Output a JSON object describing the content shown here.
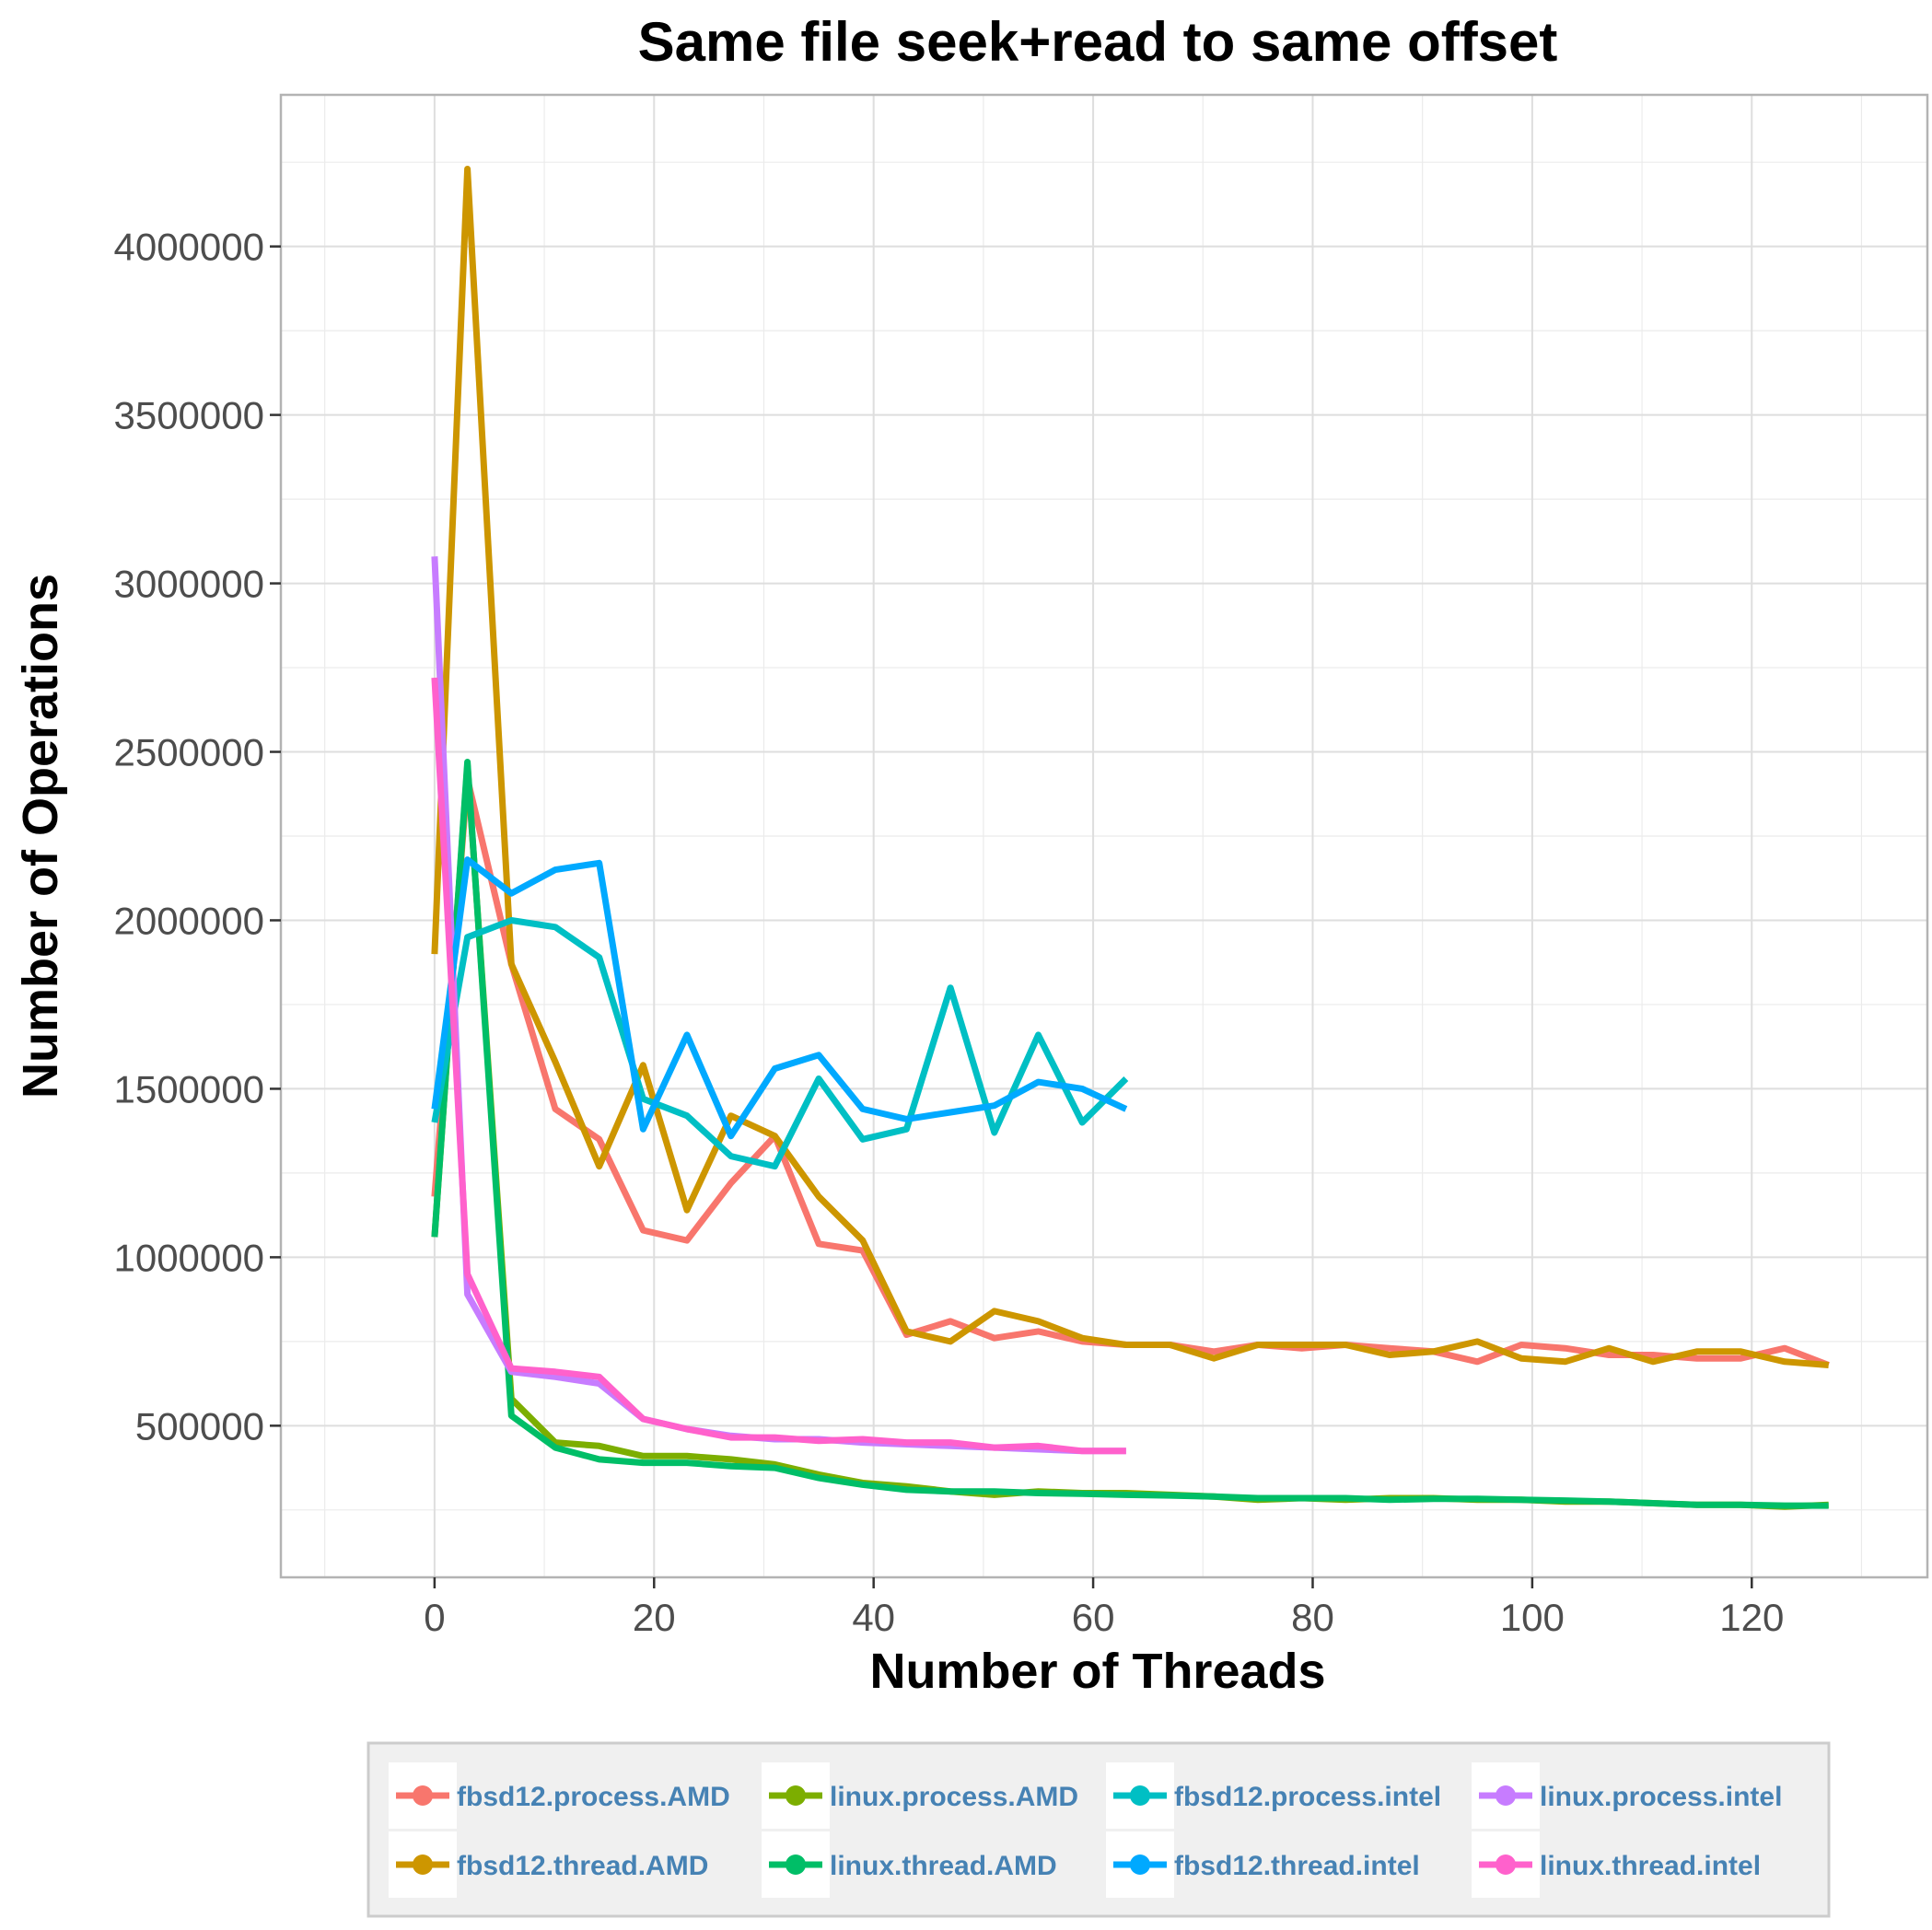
{
  "chart_data": {
    "type": "line",
    "title": "Same file seek+read to same offset",
    "xlabel": "Number of Threads",
    "ylabel": "Number of Operations",
    "xlim": [
      -14,
      136
    ],
    "ylim": [
      50000,
      4450000
    ],
    "x_ticks": [
      0,
      20,
      40,
      60,
      80,
      100,
      120
    ],
    "y_ticks": [
      500000,
      1000000,
      1500000,
      2000000,
      2500000,
      3000000,
      3500000,
      4000000
    ],
    "x_tick_labels": [
      "0",
      "20",
      "40",
      "60",
      "80",
      "100",
      "120"
    ],
    "y_tick_labels": [
      "500000",
      "1000000",
      "1500000",
      "2000000",
      "2500000",
      "3000000",
      "3500000",
      "4000000"
    ],
    "grid": true,
    "legend_position": "bottom",
    "series": [
      {
        "name": "fbsd12.process.AMD",
        "color": "#F8766D",
        "x": [
          0,
          3,
          7,
          11,
          15,
          19,
          23,
          27,
          31,
          35,
          39,
          43,
          47,
          51,
          55,
          59,
          63,
          67,
          71,
          75,
          79,
          83,
          87,
          91,
          95,
          99,
          103,
          107,
          111,
          115,
          119,
          123,
          127
        ],
        "y": [
          1180000,
          2420000,
          1870000,
          1440000,
          1350000,
          1080000,
          1050000,
          1220000,
          1360000,
          1040000,
          1020000,
          770000,
          810000,
          760000,
          780000,
          750000,
          740000,
          740000,
          720000,
          740000,
          730000,
          740000,
          730000,
          720000,
          690000,
          740000,
          730000,
          710000,
          710000,
          700000,
          700000,
          730000,
          680000
        ]
      },
      {
        "name": "fbsd12.thread.AMD",
        "color": "#CD9600",
        "x": [
          0,
          3,
          7,
          11,
          15,
          19,
          23,
          27,
          31,
          35,
          39,
          43,
          47,
          51,
          55,
          59,
          63,
          67,
          71,
          75,
          79,
          83,
          87,
          91,
          95,
          99,
          103,
          107,
          111,
          115,
          119,
          123,
          127
        ],
        "y": [
          1900000,
          4230000,
          1870000,
          1580000,
          1270000,
          1570000,
          1140000,
          1420000,
          1360000,
          1180000,
          1050000,
          780000,
          750000,
          840000,
          810000,
          760000,
          740000,
          740000,
          700000,
          740000,
          740000,
          740000,
          710000,
          720000,
          750000,
          700000,
          690000,
          730000,
          690000,
          720000,
          720000,
          690000,
          680000
        ]
      },
      {
        "name": "linux.process.AMD",
        "color": "#7CAE00",
        "x": [
          0,
          3,
          7,
          11,
          15,
          19,
          23,
          27,
          31,
          35,
          39,
          43,
          47,
          51,
          55,
          59,
          63,
          67,
          71,
          75,
          79,
          83,
          87,
          91,
          95,
          99,
          103,
          107,
          111,
          115,
          119,
          123,
          127
        ],
        "y": [
          1060000,
          2460000,
          580000,
          450000,
          440000,
          410000,
          410000,
          400000,
          385000,
          355000,
          330000,
          320000,
          305000,
          295000,
          305000,
          300000,
          300000,
          295000,
          290000,
          280000,
          285000,
          280000,
          285000,
          285000,
          280000,
          280000,
          275000,
          275000,
          270000,
          265000,
          265000,
          260000,
          265000
        ]
      },
      {
        "name": "linux.thread.AMD",
        "color": "#00BE67",
        "x": [
          0,
          3,
          7,
          11,
          15,
          19,
          23,
          27,
          31,
          35,
          39,
          43,
          47,
          51,
          55,
          59,
          63,
          67,
          71,
          75,
          79,
          83,
          87,
          91,
          95,
          99,
          103,
          107,
          111,
          115,
          119,
          123,
          127
        ],
        "y": [
          1060000,
          2470000,
          530000,
          435000,
          400000,
          390000,
          390000,
          380000,
          375000,
          345000,
          325000,
          310000,
          305000,
          305000,
          300000,
          298000,
          295000,
          293000,
          290000,
          285000,
          285000,
          285000,
          280000,
          283000,
          283000,
          280000,
          278000,
          275000,
          270000,
          265000,
          265000,
          263000,
          263000
        ]
      },
      {
        "name": "fbsd12.process.intel",
        "color": "#00BFC4",
        "x": [
          0,
          3,
          7,
          11,
          15,
          19,
          23,
          27,
          31,
          35,
          39,
          43,
          47,
          51,
          55,
          59,
          63
        ],
        "y": [
          1400000,
          1950000,
          2000000,
          1980000,
          1890000,
          1470000,
          1420000,
          1300000,
          1270000,
          1530000,
          1350000,
          1380000,
          1800000,
          1370000,
          1660000,
          1400000,
          1530000
        ]
      },
      {
        "name": "linux.process.intel",
        "color": "#C77CFF",
        "x": [
          0,
          3,
          7,
          11,
          15,
          19,
          23,
          27,
          31,
          35,
          39,
          43,
          47,
          51,
          55,
          59,
          63
        ],
        "y": [
          3080000,
          890000,
          660000,
          645000,
          625000,
          520000,
          490000,
          470000,
          460000,
          460000,
          450000,
          445000,
          440000,
          435000,
          430000,
          425000,
          425000
        ]
      },
      {
        "name": "fbsd12.thread.intel",
        "color": "#00A9FF",
        "x": [
          0,
          3,
          7,
          11,
          15,
          19,
          23,
          27,
          31,
          35,
          39,
          43,
          47,
          51,
          55,
          59,
          63
        ],
        "y": [
          1440000,
          2180000,
          2080000,
          2150000,
          2170000,
          1380000,
          1660000,
          1360000,
          1560000,
          1600000,
          1440000,
          1410000,
          1430000,
          1450000,
          1520000,
          1500000,
          1440000
        ]
      },
      {
        "name": "linux.thread.intel",
        "color": "#FF61CC",
        "x": [
          0,
          3,
          7,
          11,
          15,
          19,
          23,
          27,
          31,
          35,
          39,
          43,
          47,
          51,
          55,
          59,
          63
        ],
        "y": [
          2720000,
          950000,
          670000,
          660000,
          645000,
          520000,
          490000,
          465000,
          465000,
          455000,
          460000,
          450000,
          450000,
          435000,
          440000,
          425000,
          425000
        ]
      }
    ]
  }
}
